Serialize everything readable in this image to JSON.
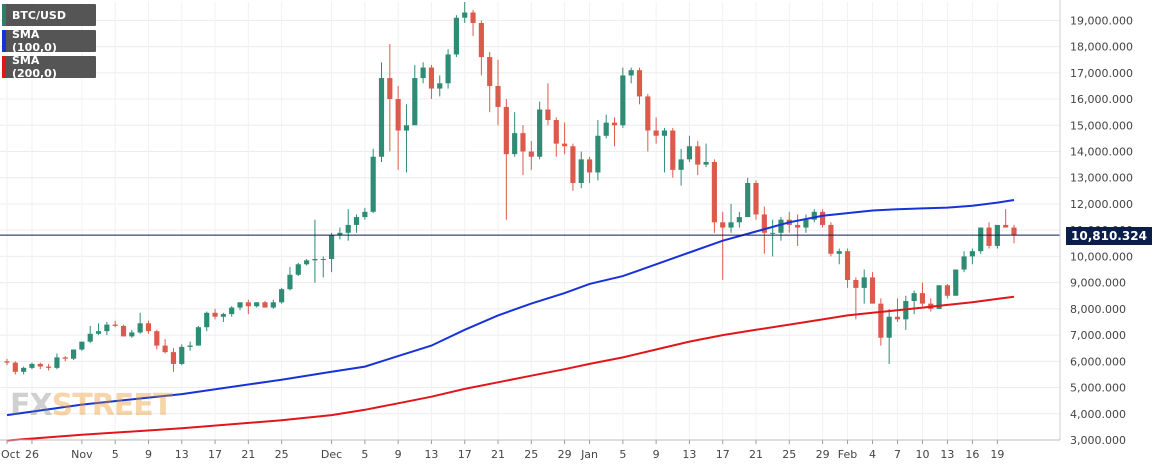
{
  "legend": [
    {
      "label": "BTC/USD",
      "color": "#2e7d6b"
    },
    {
      "label": "SMA (100,0)",
      "color": "#1733d8"
    },
    {
      "label": "SMA (200,0)",
      "color": "#e0161b"
    }
  ],
  "price_badge": "10,810.324",
  "logo": {
    "fx": "FX",
    "street": "STREET"
  },
  "colors": {
    "up": "#2e8b74",
    "down": "#dc5a4c",
    "sma100": "#1733d8",
    "sma200": "#e0161b",
    "price_line": "#0b1e4a"
  },
  "chart_data": {
    "type": "candlestick",
    "y_ticks": [
      "3,000.000",
      "4,000.000",
      "5,000.000",
      "6,000.000",
      "7,000.000",
      "8,000.000",
      "9,000.000",
      "10,000.000",
      "11,000.000",
      "12,000.000",
      "13,000.000",
      "14,000.000",
      "15,000.000",
      "16,000.000",
      "17,000.000",
      "18,000.000",
      "19,000.000"
    ],
    "ylim": [
      3000,
      19700
    ],
    "x_ticks": [
      "Oct",
      "26",
      "Nov",
      "5",
      "9",
      "13",
      "17",
      "21",
      "25",
      "Dec",
      "5",
      "9",
      "13",
      "17",
      "21",
      "25",
      "29",
      "Jan",
      "5",
      "9",
      "13",
      "17",
      "21",
      "25",
      "29",
      "Feb",
      "4",
      "7",
      "10",
      "13",
      "16",
      "19"
    ],
    "x_tick_dates": [
      "2017-10-23",
      "2017-10-26",
      "2017-11-01",
      "2017-11-05",
      "2017-11-09",
      "2017-11-13",
      "2017-11-17",
      "2017-11-21",
      "2017-11-25",
      "2017-12-01",
      "2017-12-05",
      "2017-12-09",
      "2017-12-13",
      "2017-12-17",
      "2017-12-21",
      "2017-12-25",
      "2017-12-29",
      "2018-01-01",
      "2018-01-05",
      "2018-01-09",
      "2018-01-13",
      "2018-01-17",
      "2018-01-21",
      "2018-01-25",
      "2018-01-29",
      "2018-02-01",
      "2018-02-04",
      "2018-02-07",
      "2018-02-10",
      "2018-02-13",
      "2018-02-16",
      "2018-02-19"
    ],
    "last_price": 10810.324,
    "ohlc": [
      [
        "2017-10-23",
        6000,
        6100,
        5850,
        5950
      ],
      [
        "2017-10-24",
        5950,
        6000,
        5500,
        5600
      ],
      [
        "2017-10-25",
        5600,
        5800,
        5500,
        5750
      ],
      [
        "2017-10-26",
        5750,
        5950,
        5700,
        5900
      ],
      [
        "2017-10-27",
        5900,
        5950,
        5700,
        5800
      ],
      [
        "2017-10-28",
        5800,
        5900,
        5650,
        5750
      ],
      [
        "2017-10-29",
        5750,
        6300,
        5700,
        6150
      ],
      [
        "2017-10-30",
        6150,
        6200,
        6000,
        6100
      ],
      [
        "2017-10-31",
        6100,
        6450,
        6050,
        6450
      ],
      [
        "2017-11-01",
        6450,
        6750,
        6400,
        6750
      ],
      [
        "2017-11-02",
        6750,
        7350,
        6700,
        7050
      ],
      [
        "2017-11-03",
        7050,
        7450,
        7000,
        7150
      ],
      [
        "2017-11-04",
        7150,
        7500,
        7000,
        7400
      ],
      [
        "2017-11-05",
        7400,
        7550,
        7300,
        7350
      ],
      [
        "2017-11-06",
        7350,
        7400,
        6950,
        6950
      ],
      [
        "2017-11-07",
        6950,
        7200,
        6900,
        7100
      ],
      [
        "2017-11-08",
        7100,
        7850,
        7050,
        7450
      ],
      [
        "2017-11-09",
        7450,
        7550,
        7050,
        7150
      ],
      [
        "2017-11-10",
        7150,
        7200,
        6450,
        6600
      ],
      [
        "2017-11-11",
        6600,
        6850,
        6300,
        6350
      ],
      [
        "2017-11-12",
        6350,
        6500,
        5600,
        5900
      ],
      [
        "2017-11-13",
        5900,
        6650,
        5850,
        6550
      ],
      [
        "2017-11-14",
        6550,
        6750,
        6400,
        6600
      ],
      [
        "2017-11-15",
        6600,
        7350,
        6600,
        7300
      ],
      [
        "2017-11-16",
        7300,
        7900,
        7150,
        7850
      ],
      [
        "2017-11-17",
        7850,
        8000,
        7600,
        7700
      ],
      [
        "2017-11-18",
        7700,
        7850,
        7500,
        7800
      ],
      [
        "2017-11-19",
        7800,
        8100,
        7700,
        8050
      ],
      [
        "2017-11-20",
        8050,
        8250,
        7950,
        8250
      ],
      [
        "2017-11-21",
        8250,
        8350,
        7800,
        8100
      ],
      [
        "2017-11-22",
        8100,
        8250,
        8050,
        8250
      ],
      [
        "2017-11-23",
        8250,
        8300,
        8050,
        8050
      ],
      [
        "2017-11-24",
        8050,
        8350,
        8000,
        8250
      ],
      [
        "2017-11-25",
        8250,
        8800,
        8200,
        8750
      ],
      [
        "2017-11-26",
        8750,
        9600,
        8700,
        9300
      ],
      [
        "2017-11-27",
        9300,
        9750,
        9250,
        9700
      ],
      [
        "2017-11-28",
        9700,
        9900,
        9650,
        9850
      ],
      [
        "2017-11-29",
        9850,
        11400,
        9000,
        9900
      ],
      [
        "2017-11-30",
        9900,
        10000,
        9200,
        9900
      ],
      [
        "2017-12-01",
        9900,
        10900,
        9400,
        10800
      ],
      [
        "2017-12-02",
        10800,
        11100,
        10650,
        10900
      ],
      [
        "2017-12-03",
        10900,
        11800,
        10600,
        11200
      ],
      [
        "2017-12-04",
        11200,
        11600,
        10900,
        11500
      ],
      [
        "2017-12-05",
        11500,
        11850,
        11400,
        11700
      ],
      [
        "2017-12-06",
        11700,
        14100,
        11650,
        13800
      ],
      [
        "2017-12-07",
        13800,
        17400,
        13600,
        16800
      ],
      [
        "2017-12-08",
        16800,
        18100,
        14000,
        16000
      ],
      [
        "2017-12-09",
        16000,
        16500,
        13300,
        14800
      ],
      [
        "2017-12-10",
        14800,
        15800,
        13200,
        15000
      ],
      [
        "2017-12-11",
        15000,
        17300,
        15000,
        16800
      ],
      [
        "2017-12-12",
        16800,
        17400,
        16600,
        17200
      ],
      [
        "2017-12-13",
        17200,
        17300,
        16000,
        16400
      ],
      [
        "2017-12-14",
        16400,
        16900,
        16100,
        16600
      ],
      [
        "2017-12-15",
        16600,
        17900,
        16400,
        17700
      ],
      [
        "2017-12-16",
        17700,
        19200,
        17600,
        19100
      ],
      [
        "2017-12-17",
        19100,
        19700,
        18900,
        19300
      ],
      [
        "2017-12-18",
        19300,
        19400,
        18400,
        18900
      ],
      [
        "2017-12-19",
        18900,
        19000,
        16900,
        17600
      ],
      [
        "2017-12-20",
        17600,
        17800,
        15500,
        16500
      ],
      [
        "2017-12-21",
        16500,
        17500,
        15000,
        15700
      ],
      [
        "2017-12-22",
        15700,
        16000,
        11400,
        13900
      ],
      [
        "2017-12-23",
        13900,
        15500,
        13800,
        14700
      ],
      [
        "2017-12-24",
        14700,
        15000,
        13100,
        14000
      ],
      [
        "2017-12-25",
        14000,
        14400,
        13300,
        13800
      ],
      [
        "2017-12-26",
        13800,
        15900,
        13700,
        15600
      ],
      [
        "2017-12-27",
        15600,
        16600,
        15000,
        15200
      ],
      [
        "2017-12-28",
        15200,
        15300,
        13800,
        14300
      ],
      [
        "2017-12-29",
        14300,
        15100,
        13900,
        14200
      ],
      [
        "2017-12-30",
        14200,
        14300,
        12500,
        12800
      ],
      [
        "2017-12-31",
        12800,
        14000,
        12600,
        13700
      ],
      [
        "2018-01-01",
        13700,
        13800,
        12800,
        13200
      ],
      [
        "2018-01-02",
        13200,
        15200,
        12900,
        14600
      ],
      [
        "2018-01-03",
        14600,
        15400,
        14500,
        15100
      ],
      [
        "2018-01-04",
        15100,
        15300,
        14200,
        15000
      ],
      [
        "2018-01-05",
        15000,
        17200,
        14900,
        16900
      ],
      [
        "2018-01-06",
        16900,
        17200,
        16600,
        17100
      ],
      [
        "2018-01-07",
        17100,
        17200,
        15800,
        16100
      ],
      [
        "2018-01-08",
        16100,
        16200,
        14000,
        14800
      ],
      [
        "2018-01-09",
        14800,
        15300,
        14300,
        14600
      ],
      [
        "2018-01-10",
        14600,
        14900,
        13200,
        14800
      ],
      [
        "2018-01-11",
        14800,
        14900,
        13000,
        13300
      ],
      [
        "2018-01-12",
        13300,
        14100,
        12700,
        13700
      ],
      [
        "2018-01-13",
        13700,
        14600,
        13600,
        14200
      ],
      [
        "2018-01-14",
        14200,
        14400,
        13100,
        13500
      ],
      [
        "2018-01-15",
        13500,
        14300,
        13400,
        13600
      ],
      [
        "2018-01-16",
        13600,
        13700,
        10900,
        11300
      ],
      [
        "2018-01-17",
        11300,
        11700,
        9100,
        11100
      ],
      [
        "2018-01-18",
        11100,
        12000,
        10900,
        11300
      ],
      [
        "2018-01-19",
        11300,
        11700,
        11100,
        11500
      ],
      [
        "2018-01-20",
        11500,
        13000,
        11500,
        12800
      ],
      [
        "2018-01-21",
        12800,
        12900,
        11400,
        11600
      ],
      [
        "2018-01-22",
        11600,
        11900,
        10100,
        10900
      ],
      [
        "2018-01-23",
        10900,
        11400,
        10000,
        10900
      ],
      [
        "2018-01-24",
        10900,
        11500,
        10600,
        11400
      ],
      [
        "2018-01-25",
        11400,
        11700,
        10900,
        11200
      ],
      [
        "2018-01-26",
        11200,
        11600,
        10400,
        11100
      ],
      [
        "2018-01-27",
        11100,
        11600,
        10900,
        11400
      ],
      [
        "2018-01-28",
        11400,
        11800,
        11300,
        11700
      ],
      [
        "2018-01-29",
        11700,
        11800,
        11100,
        11200
      ],
      [
        "2018-01-30",
        11200,
        11300,
        10000,
        10100
      ],
      [
        "2018-01-31",
        10100,
        10300,
        9700,
        10200
      ],
      [
        "2018-02-01",
        10200,
        10300,
        8800,
        9100
      ],
      [
        "2018-02-02",
        9100,
        9200,
        7600,
        8800
      ],
      [
        "2018-02-03",
        8800,
        9500,
        8200,
        9200
      ],
      [
        "2018-02-04",
        9200,
        9400,
        8200,
        8200
      ],
      [
        "2018-02-05",
        8200,
        8400,
        6600,
        6900
      ],
      [
        "2018-02-06",
        6900,
        8000,
        5900,
        7700
      ],
      [
        "2018-02-07",
        7700,
        8400,
        7500,
        7600
      ],
      [
        "2018-02-08",
        7600,
        8500,
        7200,
        8300
      ],
      [
        "2018-02-09",
        8300,
        8700,
        7800,
        8600
      ],
      [
        "2018-02-10",
        8600,
        9000,
        8100,
        8200
      ],
      [
        "2018-02-11",
        8200,
        8400,
        7900,
        8000
      ],
      [
        "2018-02-12",
        8000,
        8900,
        8000,
        8900
      ],
      [
        "2018-02-13",
        8900,
        8950,
        8400,
        8500
      ],
      [
        "2018-02-14",
        8500,
        9500,
        8500,
        9500
      ],
      [
        "2018-02-15",
        9500,
        10200,
        9400,
        10000
      ],
      [
        "2018-02-16",
        10000,
        10300,
        9700,
        10200
      ],
      [
        "2018-02-17",
        10200,
        11100,
        10100,
        11100
      ],
      [
        "2018-02-18",
        11100,
        11300,
        10300,
        10400
      ],
      [
        "2018-02-19",
        10400,
        11200,
        10300,
        11200
      ],
      [
        "2018-02-20",
        11200,
        11800,
        11100,
        11100
      ],
      [
        "2018-02-21",
        11100,
        11200,
        10500,
        10810
      ]
    ],
    "sma100": [
      [
        "2017-10-23",
        3950
      ],
      [
        "2017-11-01",
        4350
      ],
      [
        "2017-11-13",
        4750
      ],
      [
        "2017-11-25",
        5300
      ],
      [
        "2017-12-01",
        5600
      ],
      [
        "2017-12-05",
        5800
      ],
      [
        "2017-12-09",
        6200
      ],
      [
        "2017-12-13",
        6600
      ],
      [
        "2017-12-17",
        7200
      ],
      [
        "2017-12-21",
        7750
      ],
      [
        "2017-12-25",
        8200
      ],
      [
        "2017-12-29",
        8600
      ],
      [
        "2018-01-01",
        8950
      ],
      [
        "2018-01-05",
        9250
      ],
      [
        "2018-01-09",
        9700
      ],
      [
        "2018-01-13",
        10150
      ],
      [
        "2018-01-17",
        10600
      ],
      [
        "2018-01-21",
        10950
      ],
      [
        "2018-01-25",
        11300
      ],
      [
        "2018-01-29",
        11550
      ],
      [
        "2018-02-01",
        11650
      ],
      [
        "2018-02-04",
        11750
      ],
      [
        "2018-02-07",
        11800
      ],
      [
        "2018-02-10",
        11830
      ],
      [
        "2018-02-13",
        11860
      ],
      [
        "2018-02-16",
        11930
      ],
      [
        "2018-02-19",
        12050
      ],
      [
        "2018-02-21",
        12150
      ]
    ],
    "sma200": [
      [
        "2017-10-23",
        2980
      ],
      [
        "2017-11-01",
        3200
      ],
      [
        "2017-11-13",
        3450
      ],
      [
        "2017-11-25",
        3750
      ],
      [
        "2017-12-01",
        3950
      ],
      [
        "2017-12-05",
        4150
      ],
      [
        "2017-12-09",
        4400
      ],
      [
        "2017-12-13",
        4650
      ],
      [
        "2017-12-17",
        4950
      ],
      [
        "2017-12-21",
        5200
      ],
      [
        "2017-12-25",
        5450
      ],
      [
        "2017-12-29",
        5700
      ],
      [
        "2018-01-01",
        5900
      ],
      [
        "2018-01-05",
        6150
      ],
      [
        "2018-01-09",
        6450
      ],
      [
        "2018-01-13",
        6750
      ],
      [
        "2018-01-17",
        7000
      ],
      [
        "2018-01-21",
        7200
      ],
      [
        "2018-01-25",
        7400
      ],
      [
        "2018-01-29",
        7600
      ],
      [
        "2018-02-01",
        7750
      ],
      [
        "2018-02-04",
        7850
      ],
      [
        "2018-02-07",
        7950
      ],
      [
        "2018-02-10",
        8050
      ],
      [
        "2018-02-13",
        8150
      ],
      [
        "2018-02-16",
        8250
      ],
      [
        "2018-02-19",
        8380
      ],
      [
        "2018-02-21",
        8460
      ]
    ]
  }
}
